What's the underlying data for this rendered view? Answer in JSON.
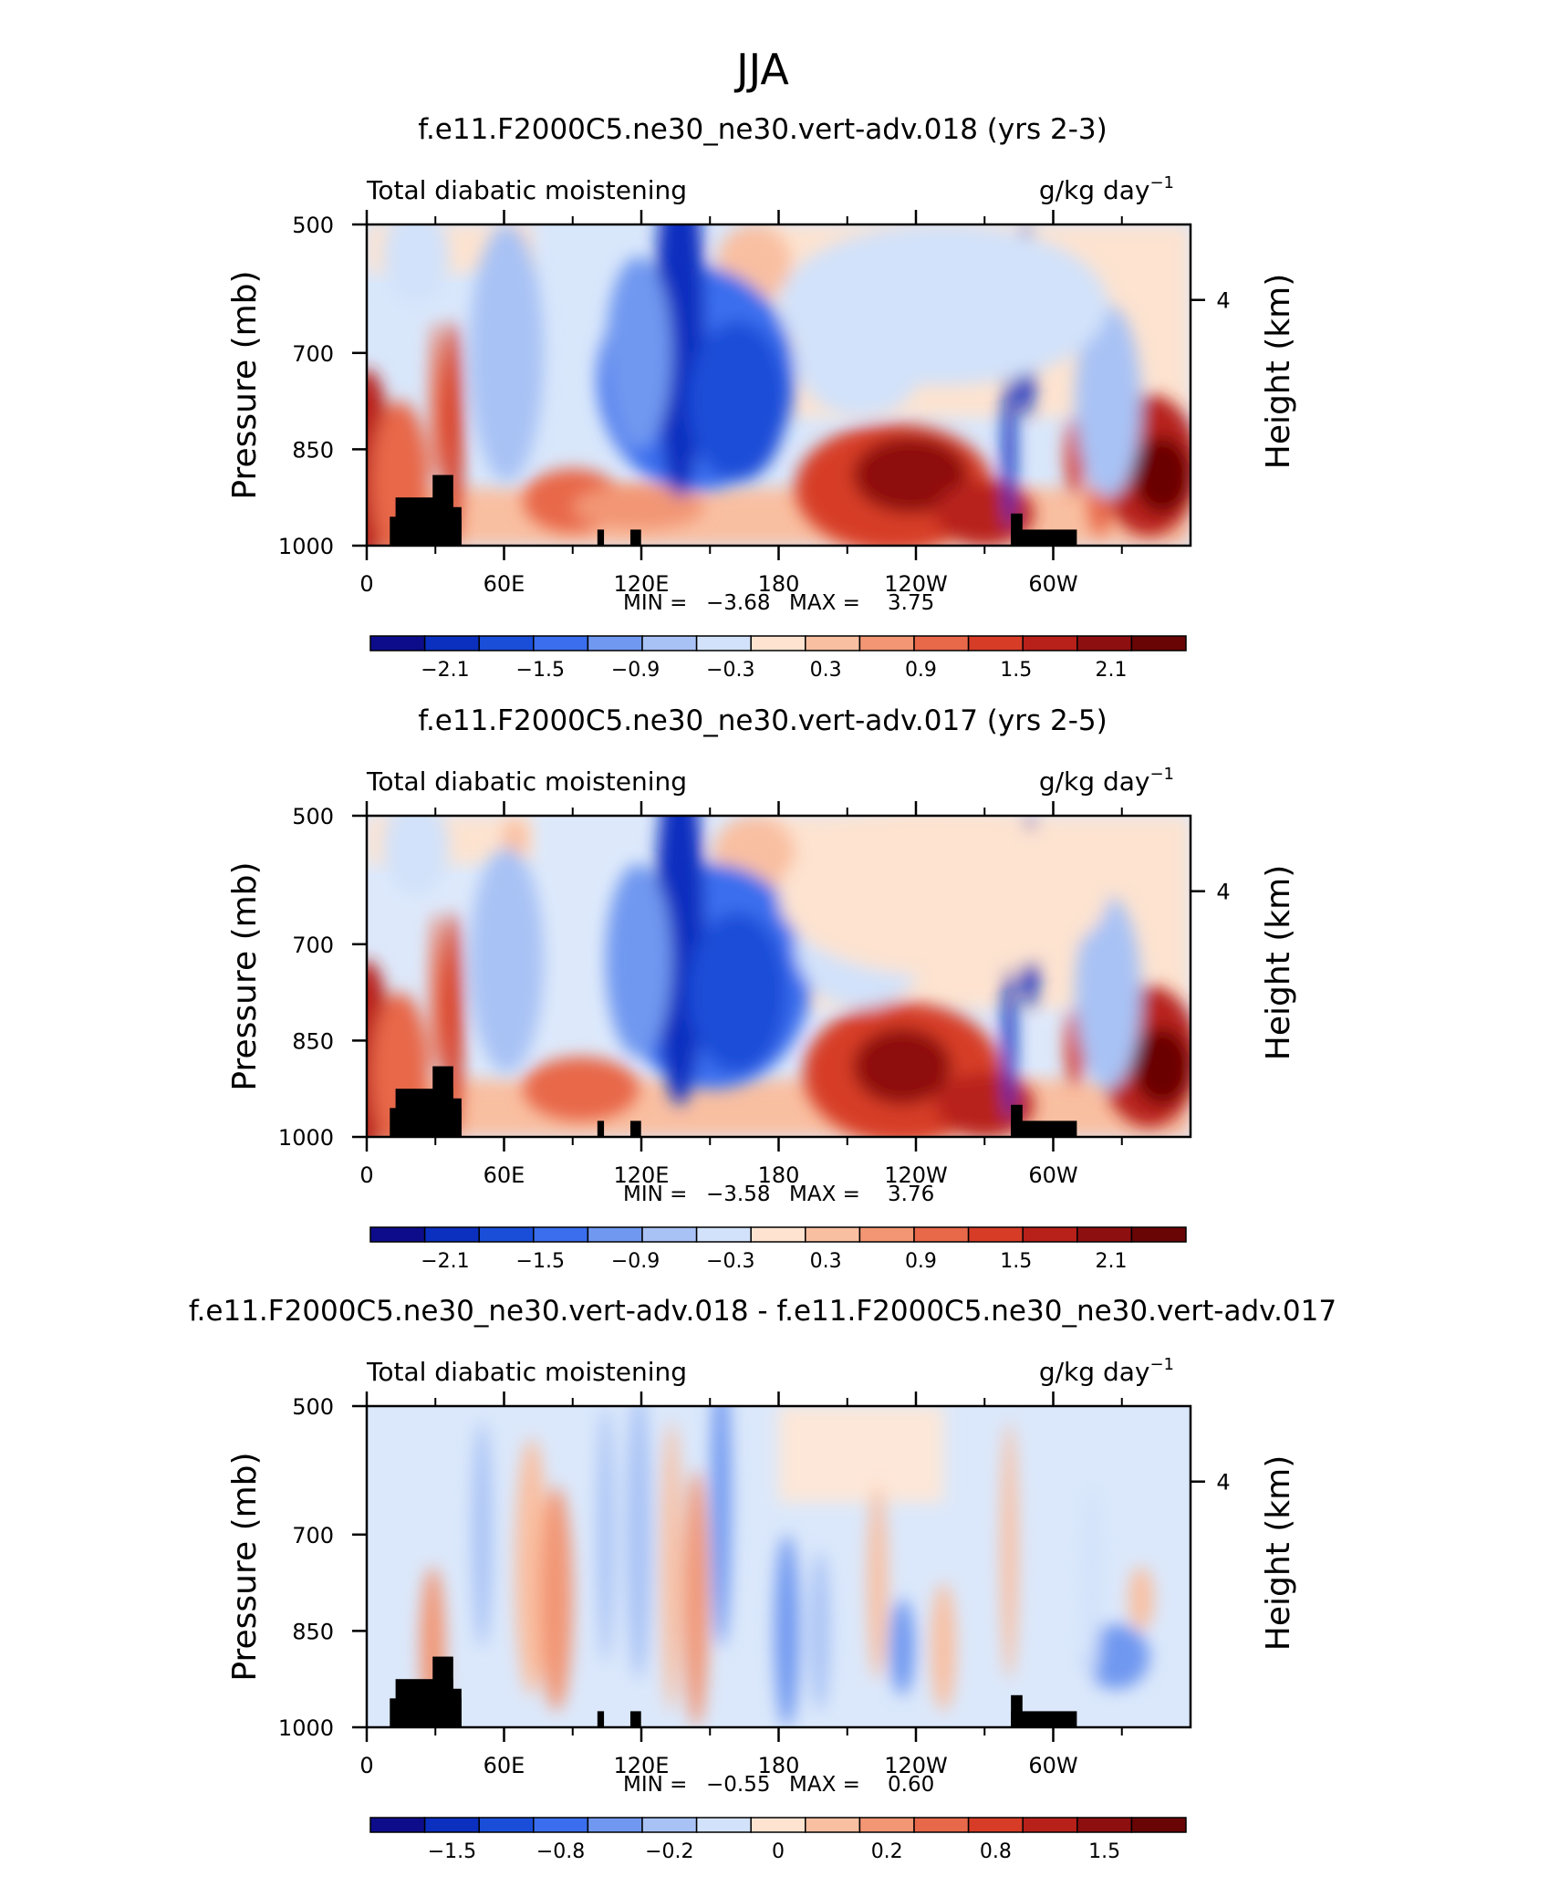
{
  "page_title": "JJA",
  "chart_data": [
    {
      "type": "heatmap",
      "title": "f.e11.F2000C5.ne30_ne30.vert-adv.018 (yrs 2-3)",
      "left_label": "Total diabatic moistening",
      "right_label": "g/kg day",
      "right_label_exp": "−1",
      "ylabel": "Pressure (mb)",
      "ylabel_right": "Height (km)",
      "yticks": [
        "500",
        "700",
        "850",
        "1000"
      ],
      "yticks_right": [
        "4"
      ],
      "xticks": [
        "0",
        "60E",
        "120E",
        "180",
        "120W",
        "60W"
      ],
      "min_text": "MIN =",
      "min_value": "−3.68",
      "max_text": "MAX =",
      "max_value": "3.75",
      "colorbar_labels": [
        "−2.1",
        "−1.5",
        "−0.9",
        "−0.3",
        "0.3",
        "0.9",
        "1.5",
        "2.1"
      ],
      "colorbar_colors": [
        "#0d0d8c",
        "#0b2fbf",
        "#1a4ed8",
        "#3a6eee",
        "#7098f0",
        "#a8c2f5",
        "#d2e2fa",
        "#fde3d0",
        "#f9bfa1",
        "#f29674",
        "#e8684a",
        "#d73c27",
        "#b8201a",
        "#8e0f10",
        "#6a0505"
      ]
    },
    {
      "type": "heatmap",
      "title": "f.e11.F2000C5.ne30_ne30.vert-adv.017 (yrs 2-5)",
      "left_label": "Total diabatic moistening",
      "right_label": "g/kg day",
      "right_label_exp": "−1",
      "ylabel": "Pressure (mb)",
      "ylabel_right": "Height (km)",
      "yticks": [
        "500",
        "700",
        "850",
        "1000"
      ],
      "yticks_right": [
        "4"
      ],
      "xticks": [
        "0",
        "60E",
        "120E",
        "180",
        "120W",
        "60W"
      ],
      "min_text": "MIN =",
      "min_value": "−3.58",
      "max_text": "MAX =",
      "max_value": "3.76",
      "colorbar_labels": [
        "−2.1",
        "−1.5",
        "−0.9",
        "−0.3",
        "0.3",
        "0.9",
        "1.5",
        "2.1"
      ],
      "colorbar_colors": [
        "#0d0d8c",
        "#0b2fbf",
        "#1a4ed8",
        "#3a6eee",
        "#7098f0",
        "#a8c2f5",
        "#d2e2fa",
        "#fde3d0",
        "#f9bfa1",
        "#f29674",
        "#e8684a",
        "#d73c27",
        "#b8201a",
        "#8e0f10",
        "#6a0505"
      ]
    },
    {
      "type": "heatmap",
      "title": "f.e11.F2000C5.ne30_ne30.vert-adv.018 - f.e11.F2000C5.ne30_ne30.vert-adv.017",
      "left_label": "Total diabatic moistening",
      "right_label": "g/kg day",
      "right_label_exp": "−1",
      "ylabel": "Pressure (mb)",
      "ylabel_right": "Height (km)",
      "yticks": [
        "500",
        "700",
        "850",
        "1000"
      ],
      "yticks_right": [
        "4"
      ],
      "xticks": [
        "0",
        "60E",
        "120E",
        "180",
        "120W",
        "60W"
      ],
      "min_text": "MIN =",
      "min_value": "−0.55",
      "max_text": "MAX =",
      "max_value": "0.60",
      "colorbar_labels": [
        "−1.5",
        "−0.8",
        "−0.2",
        "0",
        "0.2",
        "0.8",
        "1.5"
      ],
      "colorbar_colors": [
        "#0d0d8c",
        "#0b2fbf",
        "#1a4ed8",
        "#3a6eee",
        "#7098f0",
        "#a8c2f5",
        "#d2e2fa",
        "#fde3d0",
        "#f9bfa1",
        "#f29674",
        "#e8684a",
        "#d73c27",
        "#b8201a",
        "#8e0f10",
        "#6a0505"
      ]
    }
  ]
}
